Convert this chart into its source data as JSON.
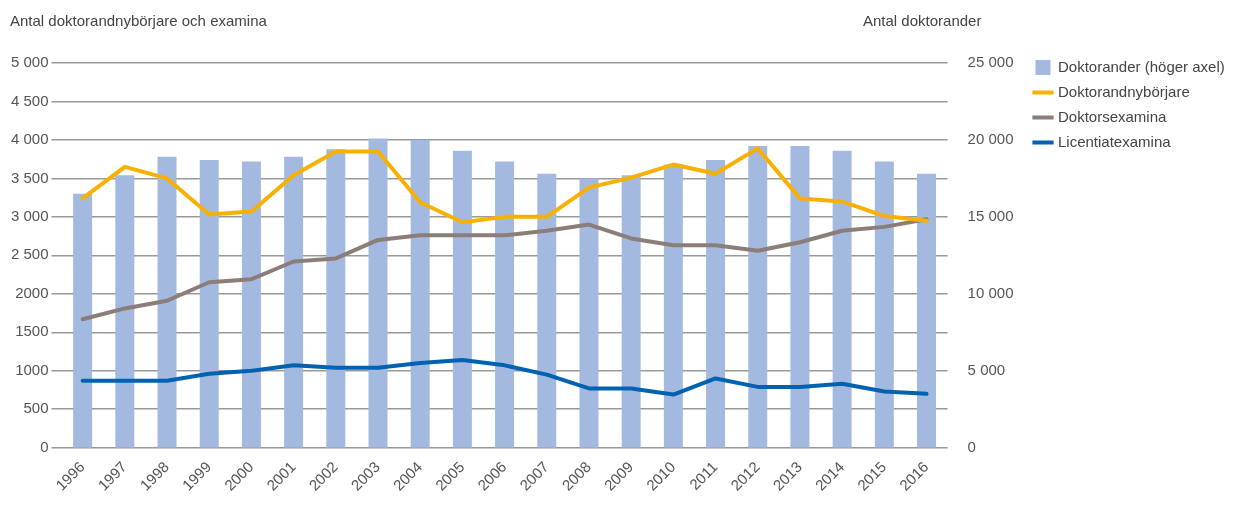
{
  "chart_data": {
    "type": "bar",
    "ylabel": "Antal doktorandnybörjare och examina",
    "y2label": "Antal doktorander",
    "categories": [
      "1996",
      "1997",
      "1998",
      "1999",
      "2000",
      "2001",
      "2002",
      "2003",
      "2004",
      "2005",
      "2006",
      "2007",
      "2008",
      "2009",
      "2010",
      "2011",
      "2012",
      "2013",
      "2014",
      "2015",
      "2016"
    ],
    "series": [
      {
        "name": "Doktorander (höger axel)",
        "axis": "y2",
        "color": "#a4b9e0",
        "values": [
          16500,
          17700,
          18900,
          18700,
          18600,
          18900,
          19400,
          20100,
          20000,
          19300,
          18600,
          17800,
          17500,
          17700,
          18400,
          18700,
          19600,
          19600,
          19300,
          18600,
          17800
        ]
      },
      {
        "name": "Doktorandnybörjare",
        "type": "line",
        "color": "#f8b100",
        "values": [
          3240,
          3650,
          3500,
          3030,
          3070,
          3540,
          3850,
          3850,
          3190,
          2930,
          3000,
          3000,
          3380,
          3510,
          3680,
          3560,
          3890,
          3240,
          3200,
          3010,
          2950
        ]
      },
      {
        "name": "Doktorsexamina",
        "type": "line",
        "color": "#8b7d78",
        "values": [
          1670,
          1810,
          1910,
          2150,
          2190,
          2420,
          2460,
          2700,
          2760,
          2760,
          2760,
          2820,
          2900,
          2720,
          2630,
          2630,
          2560,
          2670,
          2820,
          2870,
          2970
        ]
      },
      {
        "name": "Licentiatexamina",
        "type": "line",
        "color": "#0062b1",
        "values": [
          870,
          870,
          870,
          960,
          1000,
          1070,
          1040,
          1040,
          1100,
          1140,
          1070,
          950,
          770,
          770,
          690,
          900,
          790,
          790,
          830,
          730,
          700
        ]
      }
    ],
    "ylim": [
      0,
      5000
    ],
    "yticks": [
      0,
      500,
      1000,
      1500,
      2000,
      {
        "value": 2500,
        "label": "2 500"
      },
      {
        "value": 3000,
        "label": "3 000"
      },
      {
        "value": 3500,
        "label": "3 500"
      },
      {
        "value": 4000,
        "label": "4 000"
      },
      {
        "value": 4500,
        "label": "4 500"
      },
      {
        "value": 5000,
        "label": "5 000"
      }
    ],
    "y2lim": [
      0,
      25000
    ],
    "y2ticks": [
      0,
      {
        "value": 5000,
        "label": "5 000"
      },
      {
        "value": 10000,
        "label": "10 000"
      },
      {
        "value": 15000,
        "label": "15 000"
      },
      {
        "value": 20000,
        "label": "20 000"
      },
      {
        "value": 25000,
        "label": "25 000"
      }
    ],
    "grid": "y",
    "legend": "top right",
    "marker": "none",
    "line_style": "solid"
  }
}
